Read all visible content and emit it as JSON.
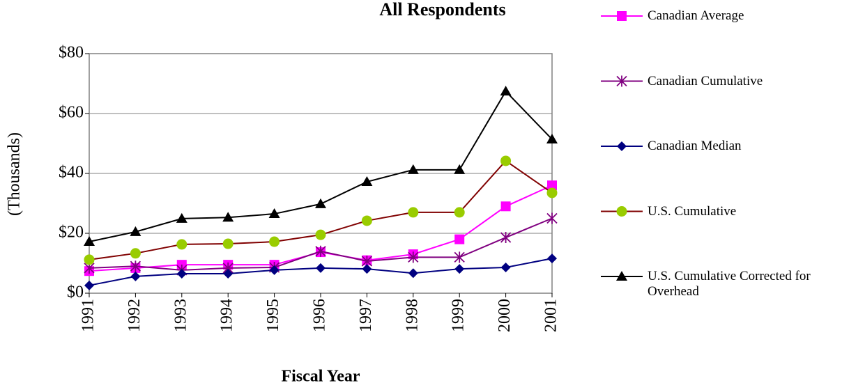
{
  "chart_data": {
    "type": "line",
    "title": "All Respondents",
    "xlabel": "Fiscal Year",
    "ylabel": "(Thousands)",
    "x": [
      1991,
      1992,
      1993,
      1994,
      1995,
      1996,
      1997,
      1998,
      1999,
      2000,
      2001
    ],
    "xlim": [
      1991,
      2001
    ],
    "xticks": [
      1991,
      1992,
      1993,
      1994,
      1995,
      1996,
      1997,
      1998,
      1999,
      2000,
      2001
    ],
    "ylim": [
      0,
      80
    ],
    "yticks": [
      {
        "value": 0,
        "label": "$0"
      },
      {
        "value": 20,
        "label": "$20"
      },
      {
        "value": 40,
        "label": "$40"
      },
      {
        "value": 60,
        "label": "$60"
      },
      {
        "value": 80,
        "label": "$80"
      }
    ],
    "grid": true,
    "legend": "right",
    "series": [
      {
        "name": "Canadian Average",
        "color": "#ff00ff",
        "marker": "square",
        "marker_color": "#ff00ff",
        "values": [
          7.4,
          8.4,
          9.5,
          9.5,
          9.5,
          13.7,
          11,
          13,
          18,
          29,
          36
        ]
      },
      {
        "name": "Canadian Cumulative",
        "color": "#800080",
        "marker": "asterisk",
        "marker_color": "#800080",
        "values": [
          8.4,
          9,
          7.7,
          8.4,
          8.6,
          14,
          10.7,
          12,
          12,
          18.6,
          25
        ]
      },
      {
        "name": "Canadian Median",
        "color": "#000080",
        "marker": "diamond",
        "marker_color": "#000080",
        "values": [
          2.6,
          5.6,
          6.5,
          6.5,
          7.7,
          8.4,
          8.1,
          6.7,
          8.1,
          8.6,
          11.6
        ]
      },
      {
        "name": "U.S. Cumulative",
        "color": "#800000",
        "marker": "circle",
        "marker_color": "#99cc00",
        "values": [
          11.2,
          13.3,
          16.3,
          16.5,
          17.2,
          19.5,
          24.2,
          27,
          27,
          44.2,
          33.5
        ]
      },
      {
        "name": "U.S. Cumulative  Corrected for Overhead",
        "color": "#000000",
        "marker": "triangle",
        "marker_color": "#000000",
        "values": [
          17.2,
          20.5,
          24.9,
          25.3,
          26.5,
          29.8,
          37.2,
          41.2,
          41.2,
          67.4,
          51.4
        ]
      }
    ]
  }
}
